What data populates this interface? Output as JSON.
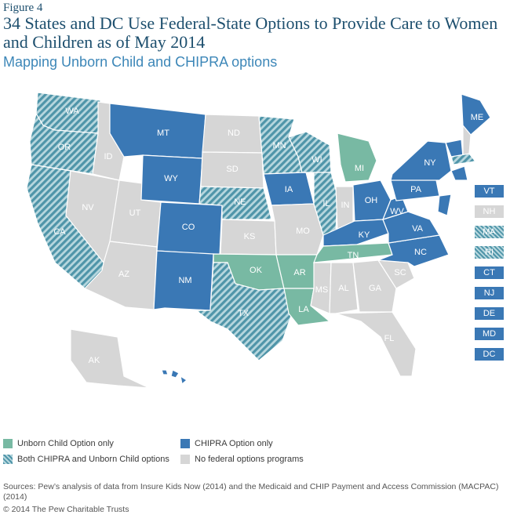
{
  "figure_label": "Figure 4",
  "title": "34 States and DC Use Federal-State Options to Provide Care to Women and Children as of May 2014",
  "subtitle": "Mapping Unborn Child and CHIPRA options",
  "colors": {
    "unborn_only": "#78b9a3",
    "chipra_only": "#3a78b5",
    "both": "#5a9fb0",
    "none": "#d6d6d6"
  },
  "states": {
    "WA": {
      "label": "WA",
      "category": "both"
    },
    "OR": {
      "label": "OR",
      "category": "both"
    },
    "CA": {
      "label": "CA",
      "category": "both"
    },
    "ID": {
      "label": "ID",
      "category": "none"
    },
    "NV": {
      "label": "NV",
      "category": "none"
    },
    "UT": {
      "label": "UT",
      "category": "none"
    },
    "AZ": {
      "label": "AZ",
      "category": "none"
    },
    "MT": {
      "label": "MT",
      "category": "chipra"
    },
    "WY": {
      "label": "WY",
      "category": "chipra"
    },
    "CO": {
      "label": "CO",
      "category": "chipra"
    },
    "NM": {
      "label": "NM",
      "category": "chipra"
    },
    "ND": {
      "label": "ND",
      "category": "none"
    },
    "SD": {
      "label": "SD",
      "category": "none"
    },
    "NE": {
      "label": "NE",
      "category": "both"
    },
    "KS": {
      "label": "KS",
      "category": "none"
    },
    "OK": {
      "label": "OK",
      "category": "unborn"
    },
    "TX": {
      "label": "TX",
      "category": "both"
    },
    "MN": {
      "label": "MN",
      "category": "both"
    },
    "IA": {
      "label": "IA",
      "category": "chipra"
    },
    "MO": {
      "label": "MO",
      "category": "none"
    },
    "AR": {
      "label": "AR",
      "category": "unborn"
    },
    "LA": {
      "label": "LA",
      "category": "unborn"
    },
    "WI": {
      "label": "WI",
      "category": "both"
    },
    "IL": {
      "label": "IL",
      "category": "both"
    },
    "MI": {
      "label": "MI",
      "category": "unborn"
    },
    "IN": {
      "label": "IN",
      "category": "none"
    },
    "OH": {
      "label": "OH",
      "category": "chipra"
    },
    "KY": {
      "label": "KY",
      "category": "chipra"
    },
    "TN": {
      "label": "TN",
      "category": "unborn"
    },
    "MS": {
      "label": "MS",
      "category": "none"
    },
    "AL": {
      "label": "AL",
      "category": "none"
    },
    "GA": {
      "label": "GA",
      "category": "none"
    },
    "FL": {
      "label": "FL",
      "category": "none"
    },
    "SC": {
      "label": "SC",
      "category": "none"
    },
    "NC": {
      "label": "NC",
      "category": "chipra"
    },
    "VA": {
      "label": "VA",
      "category": "chipra"
    },
    "WV": {
      "label": "WV",
      "category": "chipra"
    },
    "PA": {
      "label": "PA",
      "category": "chipra"
    },
    "NY": {
      "label": "NY",
      "category": "chipra"
    },
    "ME": {
      "label": "ME",
      "category": "chipra"
    },
    "AK": {
      "label": "AK",
      "category": "none"
    },
    "HI": {
      "label": "HI",
      "category": "chipra"
    }
  },
  "northeast_list": [
    {
      "label": "VT",
      "category": "chipra"
    },
    {
      "label": "NH",
      "category": "none"
    },
    {
      "label": "MA",
      "category": "both"
    },
    {
      "label": "RI",
      "category": "both"
    },
    {
      "label": "CT",
      "category": "chipra"
    },
    {
      "label": "NJ",
      "category": "chipra"
    },
    {
      "label": "DE",
      "category": "chipra"
    },
    {
      "label": "MD",
      "category": "chipra"
    },
    {
      "label": "DC",
      "category": "chipra"
    }
  ],
  "legend": {
    "unborn": "Unborn Child Option only",
    "chipra": "CHIPRA Option only",
    "both": "Both CHIPRA and Unborn Child options",
    "none": "No federal options programs"
  },
  "sources": "Sources: Pew’s analysis of data from Insure Kids Now (2014) and the Medicaid and CHIP Payment and Access Commission (MACPAC) (2014)",
  "copyright": "© 2014 The Pew Charitable Trusts"
}
